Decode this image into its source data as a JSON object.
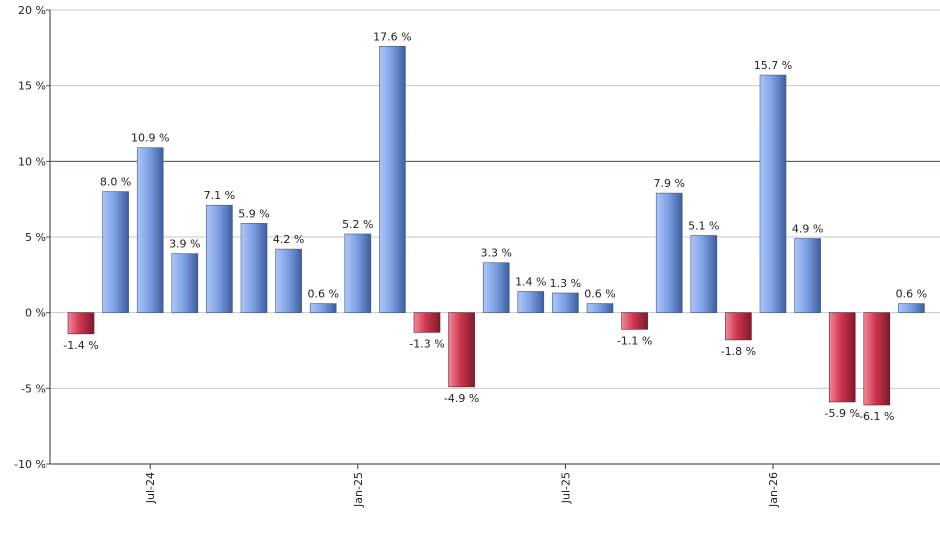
{
  "chart_data": {
    "type": "bar",
    "title": "",
    "xlabel": "",
    "ylabel": "",
    "ylim": [
      -10,
      20
    ],
    "y_ticks": [
      {
        "value": -10,
        "label": "-10 %"
      },
      {
        "value": -5,
        "label": "-5 %"
      },
      {
        "value": 0,
        "label": "0 %"
      },
      {
        "value": 5,
        "label": "5 %"
      },
      {
        "value": 10,
        "label": "10 %"
      },
      {
        "value": 15,
        "label": "15 %"
      },
      {
        "value": 20,
        "label": "20 %"
      }
    ],
    "x_ticks": [
      {
        "index": 2,
        "label": "Jul-24"
      },
      {
        "index": 8,
        "label": "Jan-25"
      },
      {
        "index": 14,
        "label": "Jul-25"
      },
      {
        "index": 20,
        "label": "Jan-26"
      }
    ],
    "grid": true,
    "reference_line": {
      "value": 10,
      "color": "#1a7a1a"
    },
    "positive_color": "#6f93d8",
    "negative_color": "#c8304a",
    "values": [
      -1.4,
      8.0,
      10.9,
      3.9,
      7.1,
      5.9,
      4.2,
      0.6,
      5.2,
      17.6,
      -1.3,
      -4.9,
      3.3,
      1.4,
      1.3,
      0.6,
      -1.1,
      7.9,
      5.1,
      -1.8,
      15.7,
      4.9,
      -5.9,
      -6.1,
      0.6
    ],
    "value_labels": [
      "-1.4 %",
      "8.0 %",
      "10.9 %",
      "3.9 %",
      "7.1 %",
      "5.9 %",
      "4.2 %",
      "0.6 %",
      "5.2 %",
      "17.6 %",
      "-1.3 %",
      "-4.9 %",
      "3.3 %",
      "1.4 %",
      "1.3 %",
      "0.6 %",
      "-1.1 %",
      "7.9 %",
      "5.1 %",
      "-1.8 %",
      "15.7 %",
      "4.9 %",
      "-5.9 %",
      "-6.1 %",
      "0.6 %"
    ]
  }
}
